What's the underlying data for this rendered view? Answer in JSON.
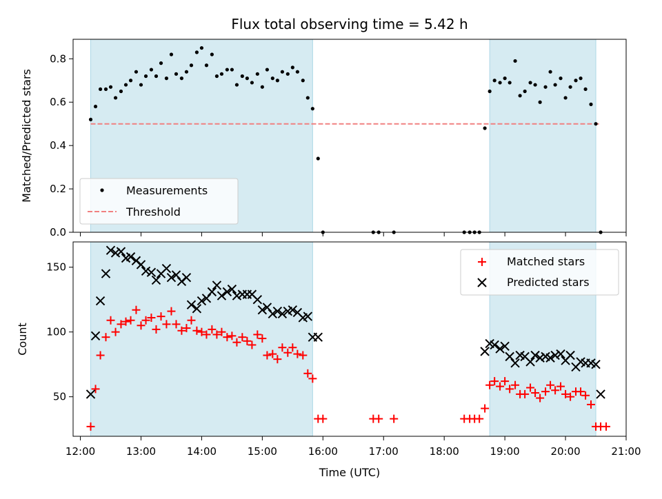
{
  "title": "Flux total observing time = 5.42 h",
  "colors": {
    "shade": "#add8e6",
    "measurement": "#000000",
    "threshold": "#f08080",
    "matched": "#ff0000",
    "predicted": "#000000"
  },
  "chart_data": [
    {
      "type": "scatter",
      "ylabel": "Matched/Predicted stars",
      "ylim": [
        0,
        0.89
      ],
      "yticks": [
        0.0,
        0.2,
        0.4,
        0.6,
        0.8
      ],
      "ytick_labels": [
        "0.0",
        "0.2",
        "0.4",
        "0.6",
        "0.8"
      ],
      "xlim": [
        11.88,
        21.0
      ],
      "shaded_intervals": [
        [
          12.17,
          15.83
        ],
        [
          18.75,
          20.5
        ]
      ],
      "threshold": 0.5,
      "threshold_x": [
        12.17,
        20.58
      ],
      "legend": {
        "placement": "lower-left",
        "entries": [
          "Measurements",
          "Threshold"
        ]
      },
      "series": [
        {
          "name": "Measurements",
          "marker": "dot",
          "x": [
            12.17,
            12.25,
            12.33,
            12.42,
            12.5,
            12.58,
            12.67,
            12.75,
            12.83,
            12.92,
            13.0,
            13.08,
            13.17,
            13.25,
            13.33,
            13.42,
            13.5,
            13.58,
            13.67,
            13.75,
            13.83,
            13.92,
            14.0,
            14.08,
            14.17,
            14.25,
            14.33,
            14.42,
            14.5,
            14.58,
            14.67,
            14.75,
            14.83,
            14.92,
            15.0,
            15.08,
            15.17,
            15.25,
            15.33,
            15.42,
            15.5,
            15.58,
            15.67,
            15.75,
            15.83,
            15.92,
            16.0,
            16.83,
            16.92,
            17.17,
            18.33,
            18.42,
            18.5,
            18.58,
            18.67,
            18.75,
            18.83,
            18.92,
            19.0,
            19.08,
            19.17,
            19.25,
            19.33,
            19.42,
            19.5,
            19.58,
            19.67,
            19.75,
            19.83,
            19.92,
            20.0,
            20.08,
            20.17,
            20.25,
            20.33,
            20.42,
            20.5,
            20.58
          ],
          "y": [
            0.52,
            0.58,
            0.66,
            0.66,
            0.67,
            0.62,
            0.65,
            0.68,
            0.7,
            0.74,
            0.68,
            0.72,
            0.75,
            0.72,
            0.78,
            0.71,
            0.82,
            0.73,
            0.71,
            0.74,
            0.77,
            0.83,
            0.85,
            0.77,
            0.82,
            0.72,
            0.73,
            0.75,
            0.75,
            0.68,
            0.72,
            0.71,
            0.69,
            0.73,
            0.67,
            0.75,
            0.71,
            0.7,
            0.74,
            0.73,
            0.76,
            0.74,
            0.7,
            0.62,
            0.57,
            0.34,
            0.0,
            0.0,
            0.0,
            0.0,
            0.0,
            0.0,
            0.0,
            0.0,
            0.48,
            0.65,
            0.7,
            0.69,
            0.71,
            0.69,
            0.79,
            0.63,
            0.65,
            0.69,
            0.68,
            0.6,
            0.67,
            0.74,
            0.68,
            0.71,
            0.62,
            0.67,
            0.7,
            0.71,
            0.66,
            0.59,
            0.5,
            0.0
          ]
        }
      ]
    },
    {
      "type": "scatter",
      "ylabel": "Count",
      "xlabel": "Time (UTC)",
      "ylim": [
        19.5,
        169.5
      ],
      "yticks": [
        50,
        100,
        150
      ],
      "ytick_labels": [
        "50",
        "100",
        "150"
      ],
      "xlim": [
        11.88,
        21.0
      ],
      "xticks": [
        12,
        13,
        14,
        15,
        16,
        17,
        18,
        19,
        20,
        21
      ],
      "xtick_labels": [
        "12:00",
        "13:00",
        "14:00",
        "15:00",
        "16:00",
        "17:00",
        "18:00",
        "19:00",
        "20:00",
        "21:00"
      ],
      "shaded_intervals": [
        [
          12.17,
          15.83
        ],
        [
          18.75,
          20.5
        ]
      ],
      "legend": {
        "placement": "top-right",
        "entries": [
          "Matched stars",
          "Predicted stars"
        ]
      },
      "series": [
        {
          "name": "Matched stars",
          "marker": "plus",
          "x": [
            12.17,
            12.25,
            12.33,
            12.42,
            12.5,
            12.58,
            12.67,
            12.75,
            12.83,
            12.92,
            13.0,
            13.08,
            13.17,
            13.25,
            13.33,
            13.42,
            13.5,
            13.58,
            13.67,
            13.75,
            13.83,
            13.92,
            14.0,
            14.08,
            14.17,
            14.25,
            14.33,
            14.42,
            14.5,
            14.58,
            14.67,
            14.75,
            14.83,
            14.92,
            15.0,
            15.08,
            15.17,
            15.25,
            15.33,
            15.42,
            15.5,
            15.58,
            15.67,
            15.75,
            15.83,
            15.92,
            16.0,
            16.83,
            16.92,
            17.17,
            18.33,
            18.42,
            18.5,
            18.58,
            18.67,
            18.75,
            18.83,
            18.92,
            19.0,
            19.08,
            19.17,
            19.25,
            19.33,
            19.42,
            19.5,
            19.58,
            19.67,
            19.75,
            19.83,
            19.92,
            20.0,
            20.08,
            20.17,
            20.25,
            20.33,
            20.42,
            20.5,
            20.58,
            20.67
          ],
          "y": [
            27,
            56,
            82,
            96,
            109,
            100,
            106,
            108,
            109,
            117,
            105,
            109,
            111,
            102,
            112,
            106,
            116,
            106,
            101,
            103,
            109,
            101,
            100,
            98,
            102,
            98,
            100,
            96,
            97,
            92,
            96,
            93,
            90,
            98,
            95,
            82,
            83,
            79,
            88,
            84,
            88,
            83,
            82,
            68,
            64,
            33,
            33,
            33,
            33,
            33,
            33,
            33,
            33,
            33,
            41,
            59,
            62,
            58,
            62,
            56,
            59,
            52,
            52,
            57,
            53,
            49,
            54,
            59,
            55,
            58,
            52,
            50,
            54,
            54,
            51,
            44,
            27,
            27,
            27
          ],
          "y_note": ""
        },
        {
          "name": "Predicted stars",
          "marker": "cross",
          "x": [
            12.17,
            12.25,
            12.33,
            12.42,
            12.5,
            12.58,
            12.67,
            12.75,
            12.83,
            12.92,
            13.0,
            13.08,
            13.17,
            13.25,
            13.33,
            13.42,
            13.5,
            13.58,
            13.67,
            13.75,
            13.83,
            13.92,
            14.0,
            14.08,
            14.17,
            14.25,
            14.33,
            14.42,
            14.5,
            14.58,
            14.67,
            14.75,
            14.83,
            14.92,
            15.0,
            15.08,
            15.17,
            15.25,
            15.33,
            15.42,
            15.5,
            15.58,
            15.67,
            15.75,
            15.83,
            15.92,
            18.67,
            18.75,
            18.83,
            18.92,
            19.0,
            19.08,
            19.17,
            19.25,
            19.33,
            19.42,
            19.5,
            19.58,
            19.67,
            19.75,
            19.83,
            19.92,
            20.0,
            20.08,
            20.17,
            20.25,
            20.33,
            20.42,
            20.5,
            20.58
          ],
          "y": [
            52,
            97,
            124,
            145,
            163,
            161,
            162,
            157,
            158,
            155,
            152,
            147,
            146,
            140,
            145,
            149,
            142,
            144,
            139,
            142,
            121,
            118,
            124,
            126,
            131,
            136,
            128,
            131,
            133,
            128,
            129,
            129,
            129,
            125,
            117,
            119,
            114,
            116,
            114,
            116,
            117,
            115,
            111,
            112,
            96,
            96,
            85,
            91,
            90,
            87,
            89,
            81,
            76,
            82,
            81,
            77,
            82,
            80,
            81,
            80,
            82,
            83,
            78,
            82,
            73,
            77,
            76,
            76,
            75,
            52
          ]
        }
      ]
    }
  ]
}
